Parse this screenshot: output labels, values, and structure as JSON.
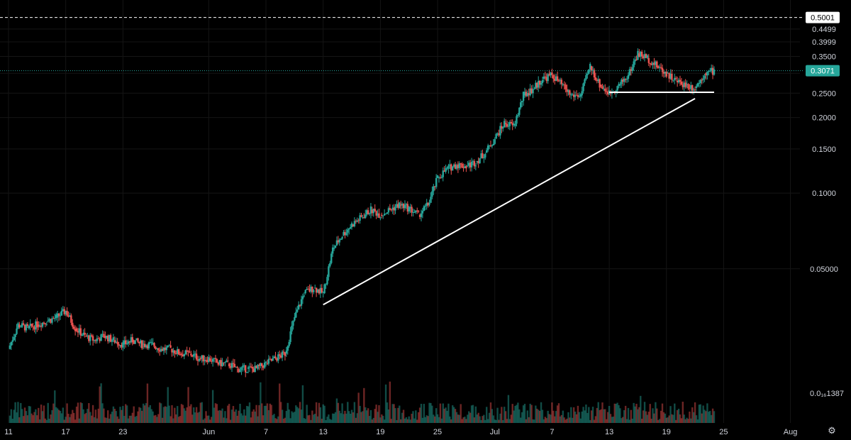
{
  "colors": {
    "background": "#000000",
    "grid": "#151515",
    "up": "#26a69a",
    "down": "#ef5350",
    "text": "#d1d4dc",
    "line": "#ffffff",
    "last_price_badge": "#26a69a",
    "level_badge": "#ffffff"
  },
  "chart_data": {
    "type": "candlestick",
    "y_scale": "log",
    "ylim": [
      0.0125,
      0.55
    ],
    "xlim": [
      "2024-05-11",
      "2024-08-02"
    ],
    "y_ticks": [
      "0.4499",
      "0.3999",
      "0.3500",
      "0.3000",
      "0.2500",
      "0.2000",
      "0.1500",
      "0.1000",
      "0.05000"
    ],
    "y_tick_values": [
      0.4499,
      0.3999,
      0.35,
      0.3,
      0.25,
      0.2,
      0.15,
      0.1,
      0.05
    ],
    "bottom_label": "0.0₁₆1387",
    "x_ticks": [
      "11",
      "17",
      "23",
      "Jun",
      "7",
      "13",
      "19",
      "25",
      "Jul",
      "7",
      "13",
      "19",
      "25",
      "Aug"
    ],
    "x_tick_dates": [
      "2024-05-11",
      "2024-05-17",
      "2024-05-23",
      "2024-06-01",
      "2024-06-07",
      "2024-06-13",
      "2024-06-19",
      "2024-06-25",
      "2024-07-01",
      "2024-07-07",
      "2024-07-13",
      "2024-07-19",
      "2024-07-25",
      "2024-08-01"
    ],
    "last_price": "0.3071",
    "last_price_value": 0.3071,
    "level_line": "0.5001",
    "level_line_value": 0.5001,
    "close_series": [
      [
        "2024-05-11",
        0.024
      ],
      [
        "2024-05-12",
        0.03
      ],
      [
        "2024-05-13",
        0.029
      ],
      [
        "2024-05-14",
        0.03
      ],
      [
        "2024-05-15",
        0.031
      ],
      [
        "2024-05-16",
        0.032
      ],
      [
        "2024-05-17",
        0.034
      ],
      [
        "2024-05-18",
        0.029
      ],
      [
        "2024-05-19",
        0.027
      ],
      [
        "2024-05-20",
        0.026
      ],
      [
        "2024-05-21",
        0.027
      ],
      [
        "2024-05-22",
        0.026
      ],
      [
        "2024-05-23",
        0.025
      ],
      [
        "2024-05-24",
        0.026
      ],
      [
        "2024-05-25",
        0.025
      ],
      [
        "2024-05-26",
        0.025
      ],
      [
        "2024-05-27",
        0.024
      ],
      [
        "2024-05-28",
        0.024
      ],
      [
        "2024-05-29",
        0.023
      ],
      [
        "2024-05-30",
        0.023
      ],
      [
        "2024-05-31",
        0.022
      ],
      [
        "2024-06-01",
        0.022
      ],
      [
        "2024-06-02",
        0.021
      ],
      [
        "2024-06-03",
        0.021
      ],
      [
        "2024-06-04",
        0.02
      ],
      [
        "2024-06-05",
        0.02
      ],
      [
        "2024-06-06",
        0.02
      ],
      [
        "2024-06-07",
        0.021
      ],
      [
        "2024-06-08",
        0.022
      ],
      [
        "2024-06-09",
        0.023
      ],
      [
        "2024-06-10",
        0.032
      ],
      [
        "2024-06-11",
        0.04
      ],
      [
        "2024-06-12",
        0.042
      ],
      [
        "2024-06-13",
        0.04
      ],
      [
        "2024-06-14",
        0.06
      ],
      [
        "2024-06-15",
        0.068
      ],
      [
        "2024-06-16",
        0.075
      ],
      [
        "2024-06-17",
        0.08
      ],
      [
        "2024-06-18",
        0.086
      ],
      [
        "2024-06-19",
        0.082
      ],
      [
        "2024-06-20",
        0.086
      ],
      [
        "2024-06-21",
        0.09
      ],
      [
        "2024-06-22",
        0.087
      ],
      [
        "2024-06-23",
        0.082
      ],
      [
        "2024-06-24",
        0.09
      ],
      [
        "2024-06-25",
        0.115
      ],
      [
        "2024-06-26",
        0.125
      ],
      [
        "2024-06-27",
        0.13
      ],
      [
        "2024-06-28",
        0.128
      ],
      [
        "2024-06-29",
        0.133
      ],
      [
        "2024-06-30",
        0.145
      ],
      [
        "2024-07-01",
        0.165
      ],
      [
        "2024-07-02",
        0.19
      ],
      [
        "2024-07-03",
        0.185
      ],
      [
        "2024-07-04",
        0.245
      ],
      [
        "2024-07-05",
        0.26
      ],
      [
        "2024-07-06",
        0.285
      ],
      [
        "2024-07-07",
        0.295
      ],
      [
        "2024-07-08",
        0.27
      ],
      [
        "2024-07-09",
        0.245
      ],
      [
        "2024-07-10",
        0.245
      ],
      [
        "2024-07-11",
        0.32
      ],
      [
        "2024-07-12",
        0.27
      ],
      [
        "2024-07-13",
        0.25
      ],
      [
        "2024-07-14",
        0.268
      ],
      [
        "2024-07-15",
        0.295
      ],
      [
        "2024-07-16",
        0.36
      ],
      [
        "2024-07-17",
        0.345
      ],
      [
        "2024-07-18",
        0.32
      ],
      [
        "2024-07-19",
        0.3
      ],
      [
        "2024-07-20",
        0.28
      ],
      [
        "2024-07-21",
        0.27
      ],
      [
        "2024-07-22",
        0.262
      ],
      [
        "2024-07-23",
        0.3
      ],
      [
        "2024-07-24",
        0.3071
      ]
    ],
    "annotations": [
      {
        "type": "trendline",
        "from": [
          "2024-06-13",
          0.036
        ],
        "to": [
          "2024-07-22",
          0.238
        ]
      },
      {
        "type": "horizontal",
        "from": [
          "2024-07-13",
          0.252
        ],
        "to": [
          "2024-07-24",
          0.252
        ]
      }
    ]
  },
  "settings_icon": "gear-icon"
}
